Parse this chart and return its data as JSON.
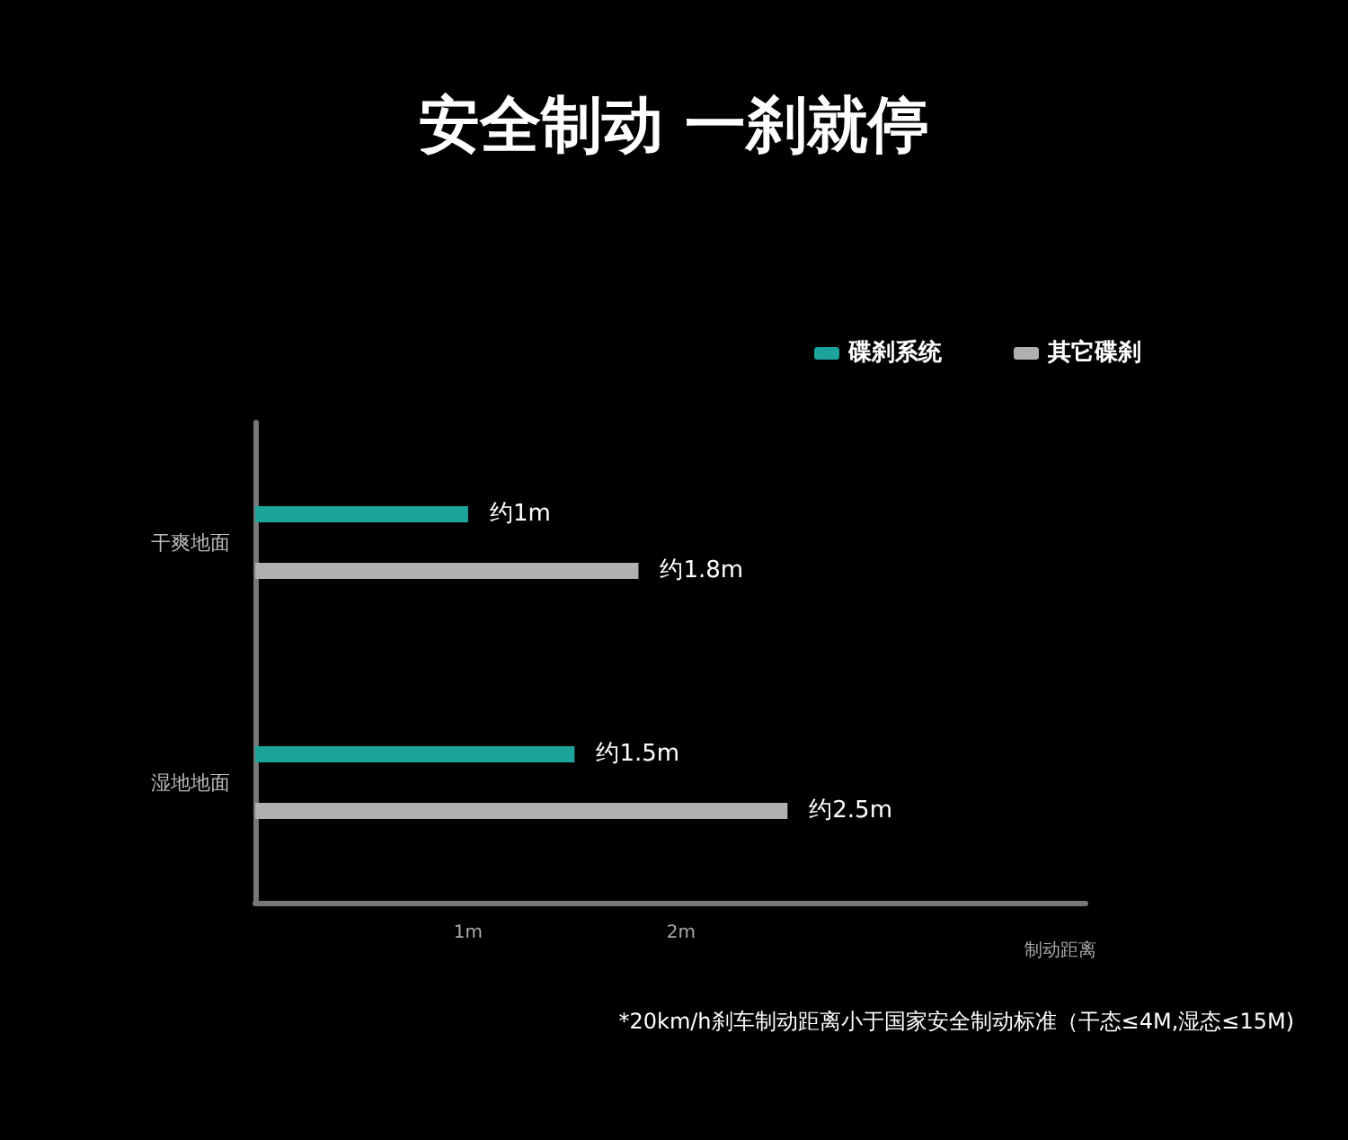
{
  "chart_data": {
    "type": "bar",
    "orientation": "horizontal",
    "title": "安全制动 一刹就停",
    "xlabel": "制动距离",
    "categories": [
      "干爽地面",
      "湿地地面"
    ],
    "series": [
      {
        "name": "碟刹系统",
        "color": "#1ba39c",
        "values": [
          1,
          1.5
        ],
        "value_labels": [
          "约1m",
          "约1.5m"
        ]
      },
      {
        "name": "其它碟刹",
        "color": "#b0b0b0",
        "values": [
          1.8,
          2.5
        ],
        "value_labels": [
          "约1.8m",
          "约2.5m"
        ]
      }
    ],
    "xlim": [
      0,
      3.9
    ],
    "xticks": [
      {
        "value": 1,
        "label": "1m"
      },
      {
        "value": 2,
        "label": "2m"
      }
    ],
    "grid": false,
    "legend": "top right",
    "annotations": [
      "*20km/h刹车制动距离小于国家安全制动标准（干态≤4M,湿态≤15M)"
    ]
  }
}
